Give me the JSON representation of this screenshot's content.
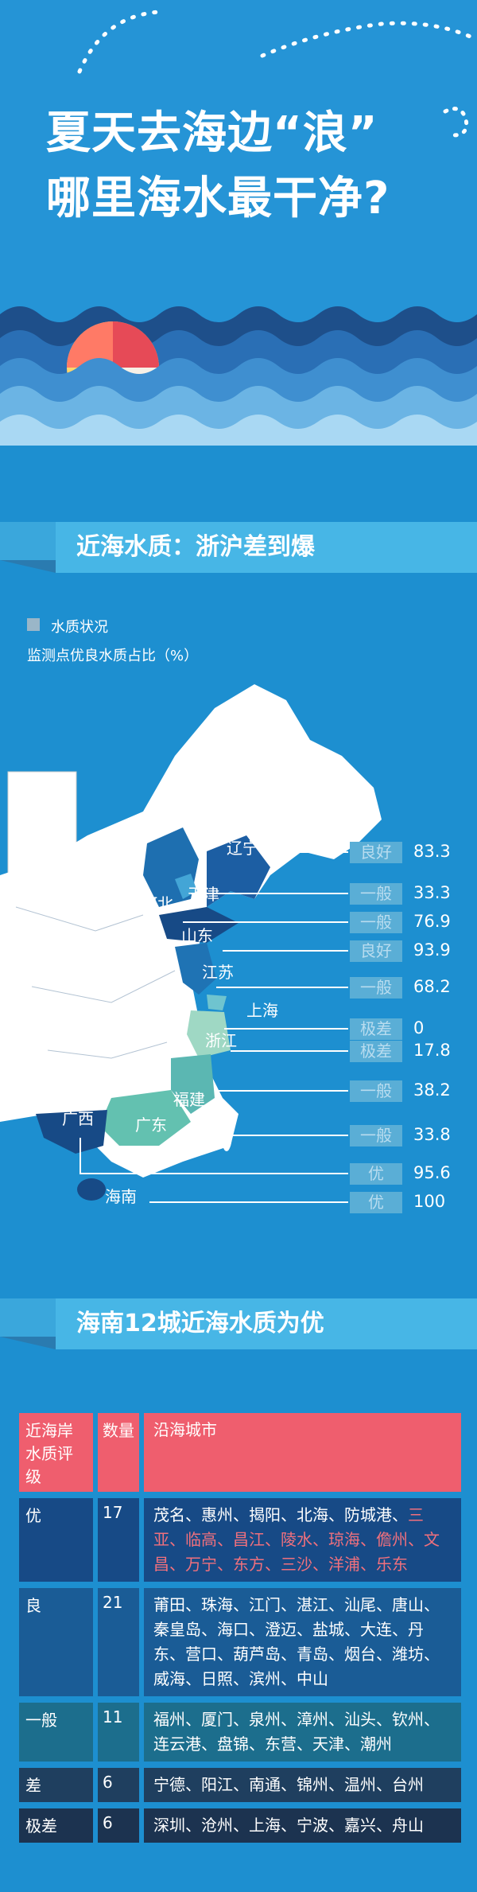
{
  "header": {
    "title_line1": "夏天去海边“浪”",
    "title_line2": "哪里海水最干净?"
  },
  "section1": {
    "title": "近海水质：浙沪差到爆"
  },
  "map": {
    "legend_label": "水质状况",
    "subtitle": "监测点优良水质占比（%）",
    "provinces": [
      {
        "name": "辽宁",
        "status": "良好",
        "value": "83.3"
      },
      {
        "name": "天津",
        "status": "一般",
        "value": "33.3"
      },
      {
        "name": "河北",
        "status": "一般",
        "value": "76.9"
      },
      {
        "name": "山东",
        "status": "良好",
        "value": "93.9"
      },
      {
        "name": "江苏",
        "status": "一般",
        "value": "68.2"
      },
      {
        "name": "上海",
        "status": "极差",
        "value": "0"
      },
      {
        "name": "浙江",
        "status": "极差",
        "value": "17.8"
      },
      {
        "name": "福建",
        "status": "一般",
        "value": "38.2"
      },
      {
        "name": "广东",
        "status": "一般",
        "value": "33.8"
      },
      {
        "name": "广西",
        "status": "优",
        "value": "95.6"
      },
      {
        "name": "海南",
        "status": "优",
        "value": "100"
      }
    ]
  },
  "section2": {
    "title": "海南12城近海水质为优"
  },
  "table": {
    "headers": [
      "近海岸\n水质评级",
      "数量",
      "沿海城市"
    ],
    "rows": [
      {
        "grade": "优",
        "count": "17",
        "cities_normal": "茂名、惠州、揭阳、北海、防城港、",
        "cities_red": "三亚、临高、昌江、陵水、琼海、儋州、文昌、万宁、东方、三沙、洋浦、乐东"
      },
      {
        "grade": "良",
        "count": "21",
        "cities_normal": "莆田、珠海、江门、湛江、汕尾、唐山、秦皇岛、海口、澄迈、盐城、大连、丹东、营口、葫芦岛、青岛、烟台、潍坊、威海、日照、滨州、中山",
        "cities_red": ""
      },
      {
        "grade": "一般",
        "count": "11",
        "cities_normal": "福州、厦门、泉州、漳州、汕头、钦州、连云港、盘锦、东营、天津、潮州",
        "cities_red": ""
      },
      {
        "grade": "差",
        "count": "6",
        "cities_normal": "宁德、阳江、南通、锦州、温州、台州",
        "cities_red": ""
      },
      {
        "grade": "极差",
        "count": "6",
        "cities_normal": "深圳、沧州、上海、宁波、嘉兴、舟山",
        "cities_red": ""
      }
    ]
  }
}
